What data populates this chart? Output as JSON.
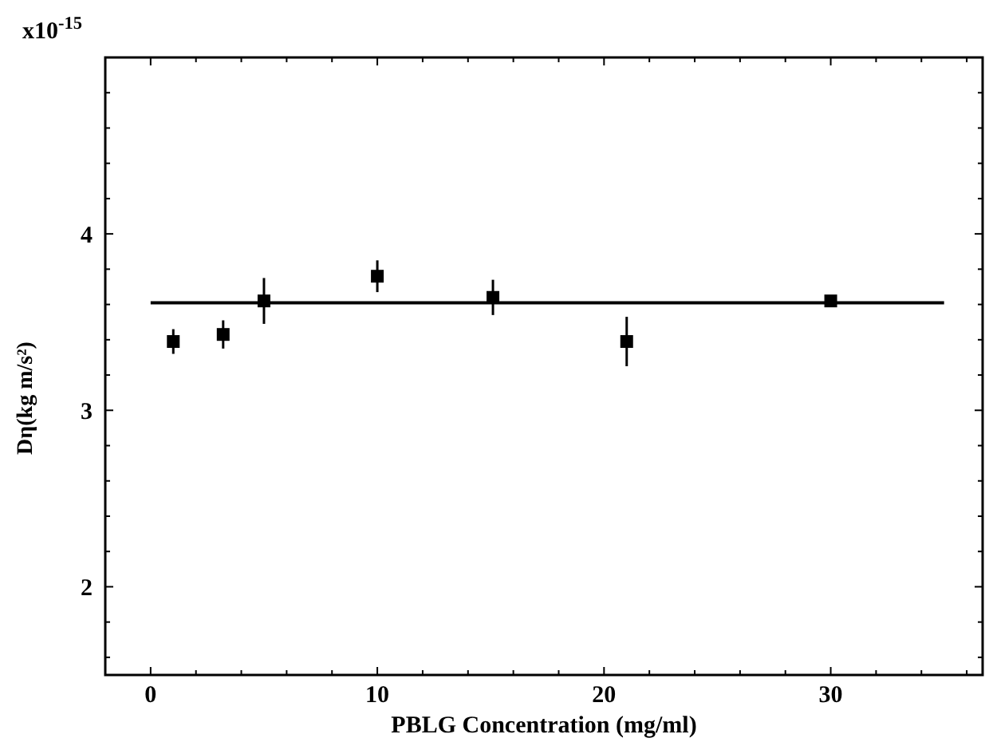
{
  "chart_data": {
    "type": "scatter",
    "xlabel": "PBLG Concentration (mg/ml)",
    "ylabel": "Dη(kg m/s²)",
    "annotations": [
      "x10$^{-15}$"
    ],
    "xlim": [
      -2,
      36.7
    ],
    "ylim": [
      1.5,
      5
    ],
    "xticks": [
      0,
      {
        "value": 2,
        "label": null
      },
      {
        "value": 4,
        "label": null
      },
      {
        "value": 6,
        "label": null
      },
      {
        "value": 8,
        "label": null
      },
      10,
      {
        "value": 12,
        "label": null
      },
      {
        "value": 14,
        "label": null
      },
      {
        "value": 16,
        "label": null
      },
      {
        "value": 18,
        "label": null
      },
      20,
      {
        "value": 22,
        "label": null
      },
      {
        "value": 24,
        "label": null
      },
      {
        "value": 26,
        "label": null
      },
      {
        "value": 28,
        "label": null
      },
      30,
      {
        "value": 32,
        "label": null
      },
      {
        "value": 34,
        "label": null
      },
      {
        "value": 36,
        "label": null
      }
    ],
    "yticks": [
      {
        "value": 1.6,
        "label": null
      },
      {
        "value": 1.8,
        "label": null
      },
      2,
      {
        "value": 2.2,
        "label": null
      },
      {
        "value": 2.4,
        "label": null
      },
      {
        "value": 2.6,
        "label": null
      },
      {
        "value": 2.8,
        "label": null
      },
      3,
      {
        "value": 3.2,
        "label": null
      },
      {
        "value": 3.4,
        "label": null
      },
      {
        "value": 3.6,
        "label": null
      },
      {
        "value": 3.8,
        "label": null
      },
      4,
      {
        "value": 4.2,
        "label": null
      },
      {
        "value": 4.4,
        "label": null
      },
      {
        "value": 4.6,
        "label": null
      },
      {
        "value": 4.8,
        "label": null
      }
    ],
    "grid": false,
    "marker": "square",
    "series": [
      {
        "color": "#000000",
        "x": [
          1,
          3.2,
          5,
          10,
          15.1,
          21,
          30
        ],
        "values": [
          3.39,
          3.43,
          3.62,
          3.76,
          3.64,
          3.39,
          3.62
        ],
        "errors": [
          0.07,
          0.08,
          0.13,
          0.09,
          0.1,
          0.14,
          null
        ]
      },
      {
        "type": "line",
        "color": "#000000",
        "x": [
          0,
          35
        ],
        "values": [
          3.61,
          3.61
        ],
        "line_style": "solid",
        "marker": "none"
      }
    ]
  }
}
